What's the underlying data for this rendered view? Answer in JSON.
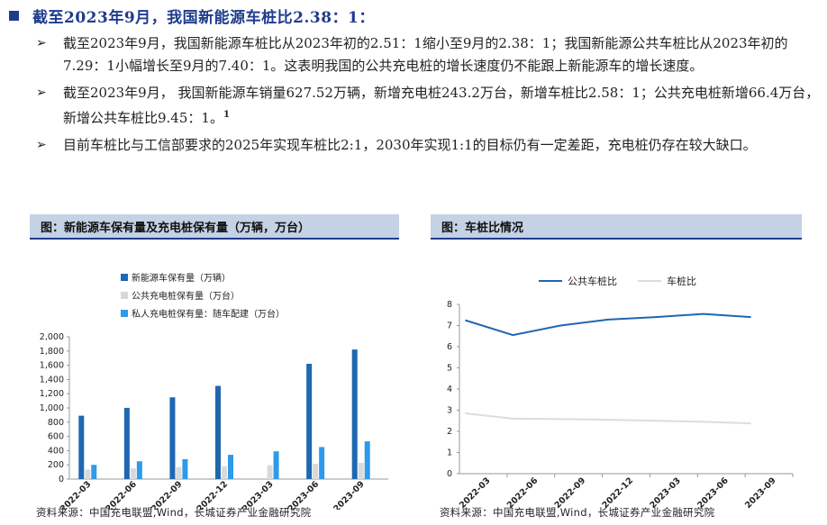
{
  "heading": "截至2023年9月，我国新能源车桩比2.38：1：",
  "bullets": [
    {
      "text": "截至2023年9月，我国新能源车桩比从2023年初的2.51：1缩小至9月的2.38：1；我国新能源公共车桩比从2023年初的7.29：1小幅增长至9月的7.40：1。这表明我国的公共充电桩的增长速度仍不能跟上新能源车的增长速度。",
      "sup": ""
    },
    {
      "text": "截至2023年9月， 我国新能源车销量627.52万辆，新增充电桩243.2万台，新增车桩比2.58：1；公共充电桩新增66.4万台，新增公共车桩比9.45：1。",
      "sup": "1"
    },
    {
      "text": "目前车桩比与工信部要求的2025年实现车桩比2:1，2030年实现1:1的目标仍有一定差距，充电桩仍存在较大缺口。",
      "sup": ""
    }
  ],
  "chart_left": {
    "title": "图：新能源车保有量及充电桩保有量（万辆，万台）",
    "source": "资料来源：中国充电联盟,Wind，长城证券产业金融研究院"
  },
  "chart_right": {
    "title": "图：车桩比情况",
    "source": "资料来源：中国充电联盟,Wind，长城证券产业金融研究院"
  },
  "colors": {
    "navy": "#1f3b8c",
    "series_ev": "#1f67b1",
    "series_public": "#d9d9d9",
    "series_private": "#2e9ae8",
    "line_public": "#1f67b1",
    "line_total": "#dddddd"
  },
  "chart_data": [
    {
      "type": "bar",
      "categories": [
        "2022-03",
        "2022-06",
        "2022-09",
        "2022-12",
        "2023-03",
        "2023-06",
        "2023-09"
      ],
      "series": [
        {
          "name": "新能源车保有量（万辆）",
          "values": [
            891,
            1001,
            1149,
            1310,
            null,
            1620,
            1821
          ]
        },
        {
          "name": "公共充电桩保有量（万台）",
          "values": [
            134,
            150,
            168,
            180,
            195,
            214,
            228
          ]
        },
        {
          "name": "私人充电桩保有量：随车配建（万台）",
          "values": [
            200,
            250,
            280,
            341,
            390,
            450,
            530
          ]
        }
      ],
      "legend_position": "top",
      "ylim": [
        0,
        2000
      ],
      "yticks": [
        0,
        200,
        400,
        600,
        800,
        1000,
        1200,
        1400,
        1600,
        1800,
        2000
      ],
      "ytick_labels": [
        "0",
        "200",
        "400",
        "600",
        "800",
        "1,000",
        "1,200",
        "1,400",
        "1,600",
        "1,800",
        "2,000"
      ]
    },
    {
      "type": "line",
      "categories": [
        "2022-03",
        "2022-06",
        "2022-09",
        "2022-12",
        "2023-03",
        "2023-06",
        "2023-09"
      ],
      "series": [
        {
          "name": "公共车桩比",
          "values": [
            7.25,
            6.55,
            7.0,
            7.28,
            7.4,
            7.55,
            7.4
          ]
        },
        {
          "name": "车桩比",
          "values": [
            2.85,
            2.6,
            2.58,
            2.55,
            2.5,
            2.45,
            2.38
          ]
        }
      ],
      "legend_position": "top",
      "ylim": [
        0,
        8
      ],
      "yticks": [
        0,
        1,
        2,
        3,
        4,
        5,
        6,
        7,
        8
      ]
    }
  ]
}
